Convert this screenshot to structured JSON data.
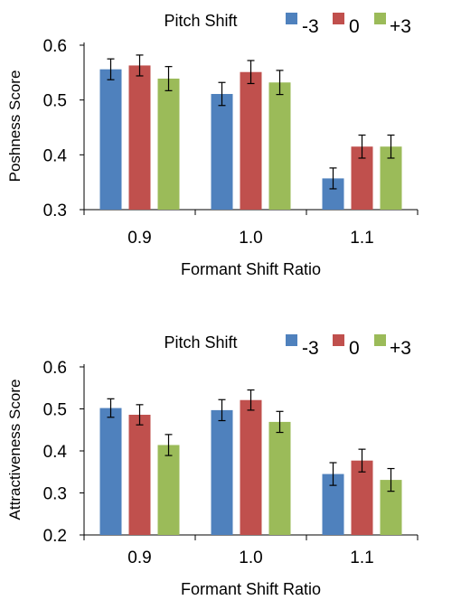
{
  "chart_data": [
    {
      "type": "bar",
      "legend_title": "Pitch Shift",
      "legend_position": "top",
      "xlabel": "Formant Shift Ratio",
      "ylabel": "Poshness Score",
      "categories": [
        "0.9",
        "1.0",
        "1.1"
      ],
      "ylim": [
        0.3,
        0.6
      ],
      "yticks": [
        "0.3",
        "0.4",
        "0.5",
        "0.6"
      ],
      "grid": false,
      "series": [
        {
          "name": "-3",
          "color": "#4f81bd",
          "values": [
            0.556,
            0.511,
            0.357
          ],
          "errors": [
            0.019,
            0.021,
            0.019
          ]
        },
        {
          "name": "0",
          "color": "#c0504d",
          "values": [
            0.563,
            0.551,
            0.415
          ],
          "errors": [
            0.019,
            0.021,
            0.021
          ]
        },
        {
          "name": "+3",
          "color": "#9bbb59",
          "values": [
            0.539,
            0.532,
            0.415
          ],
          "errors": [
            0.022,
            0.022,
            0.021
          ]
        }
      ]
    },
    {
      "type": "bar",
      "legend_title": "Pitch Shift",
      "legend_position": "top",
      "xlabel": "Formant Shift Ratio",
      "ylabel": "Attractiveness Score",
      "categories": [
        "0.9",
        "1.0",
        "1.1"
      ],
      "ylim": [
        0.2,
        0.6
      ],
      "yticks": [
        "0.2",
        "0.3",
        "0.4",
        "0.5",
        "0.6"
      ],
      "grid": false,
      "series": [
        {
          "name": "-3",
          "color": "#4f81bd",
          "values": [
            0.502,
            0.497,
            0.345
          ],
          "errors": [
            0.022,
            0.025,
            0.027
          ]
        },
        {
          "name": "0",
          "color": "#c0504d",
          "values": [
            0.486,
            0.521,
            0.377
          ],
          "errors": [
            0.024,
            0.024,
            0.027
          ]
        },
        {
          "name": "+3",
          "color": "#9bbb59",
          "values": [
            0.414,
            0.469,
            0.331
          ],
          "errors": [
            0.025,
            0.025,
            0.027
          ]
        }
      ]
    }
  ]
}
